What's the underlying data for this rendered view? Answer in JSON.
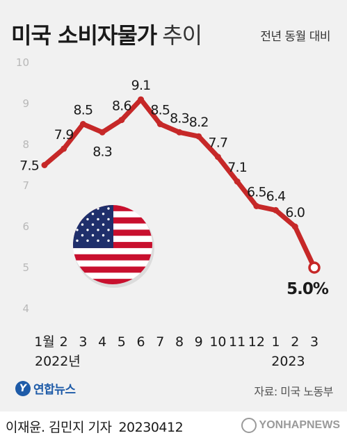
{
  "header": {
    "title_bold": "미국 소비자물가",
    "title_light": "추이",
    "subtitle": "전년 동월 대비"
  },
  "chart_data": {
    "type": "line",
    "x": [
      "1월",
      "2",
      "3",
      "4",
      "5",
      "6",
      "7",
      "8",
      "9",
      "10",
      "11",
      "12",
      "1",
      "2",
      "3"
    ],
    "year_labels": [
      {
        "text": "2022년",
        "index": 0
      },
      {
        "text": "2023",
        "index": 12
      }
    ],
    "series": [
      {
        "values": [
          7.5,
          7.9,
          8.5,
          8.3,
          8.6,
          9.1,
          8.5,
          8.3,
          8.2,
          7.7,
          7.1,
          6.5,
          6.4,
          6.0,
          5.0
        ],
        "color": "#c62828"
      }
    ],
    "value_labels": [
      "7.5",
      "7.9",
      "8.5",
      "8.3",
      "8.6",
      "9.1",
      "8.5",
      "8.3",
      "8.2",
      "7.7",
      "7.1",
      "6.5",
      "6.4",
      "6.0",
      "5.0%"
    ],
    "y_ticks": [
      "4",
      "5",
      "6",
      "7",
      "8",
      "9",
      "10"
    ],
    "ylim": [
      4,
      10
    ],
    "grid": false,
    "xlabel": "",
    "ylabel": ""
  },
  "decor": {
    "flag": "us-flag-icon"
  },
  "footer": {
    "logo_text": "연합뉴스",
    "source": "자료: 미국 노동부",
    "byline": "이재윤. 김민지 기자",
    "date": "20230412",
    "agency": "YONHAPNEWS"
  }
}
